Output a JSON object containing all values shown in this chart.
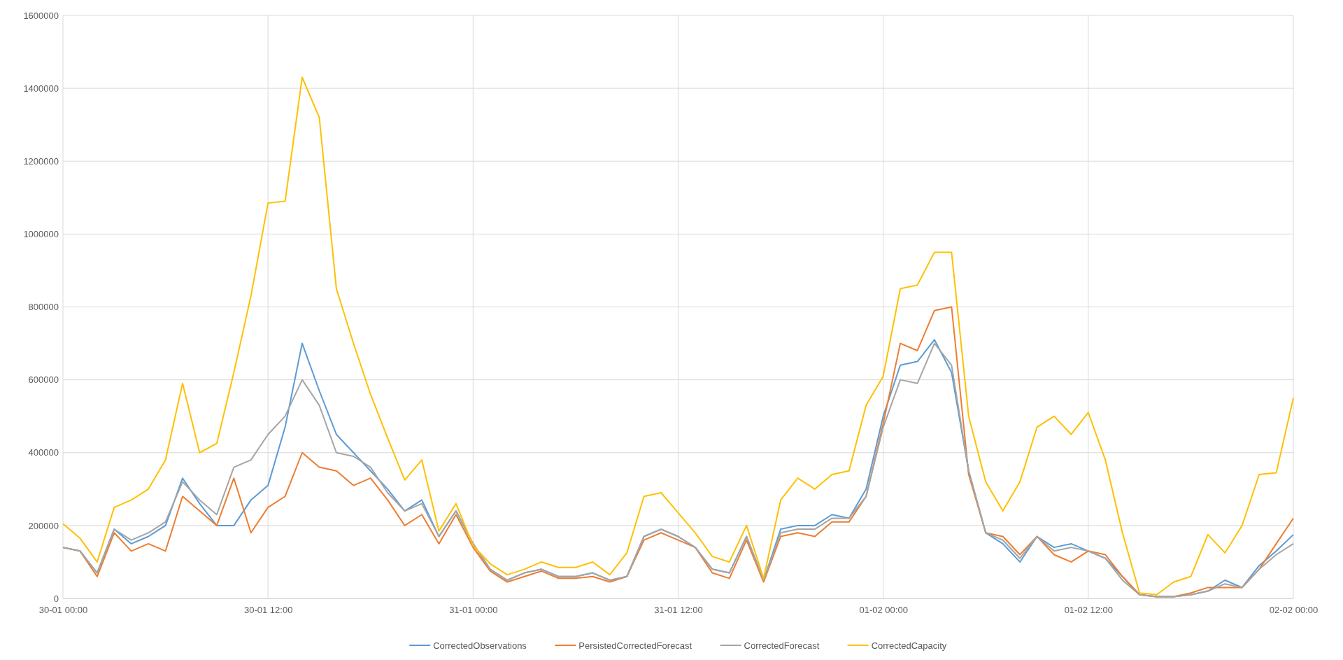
{
  "chart_data": {
    "type": "line",
    "x": [
      "--01-30T00:00",
      "--01-30T01:00",
      "--01-30T02:00",
      "--01-30T03:00",
      "--01-30T04:00",
      "--01-30T05:00",
      "--01-30T06:00",
      "--01-30T07:00",
      "--01-30T08:00",
      "--01-30T09:00",
      "--01-30T10:00",
      "--01-30T11:00",
      "--01-30T12:00",
      "--01-30T13:00",
      "--01-30T14:00",
      "--01-30T15:00",
      "--01-30T16:00",
      "--01-30T17:00",
      "--01-30T18:00",
      "--01-30T19:00",
      "--01-30T20:00",
      "--01-30T21:00",
      "--01-30T22:00",
      "--01-30T23:00",
      "--01-31T00:00",
      "--01-31T01:00",
      "--01-31T02:00",
      "--01-31T03:00",
      "--01-31T04:00",
      "--01-31T05:00",
      "--01-31T06:00",
      "--01-31T07:00",
      "--01-31T08:00",
      "--01-31T09:00",
      "--01-31T10:00",
      "--01-31T11:00",
      "--01-31T12:00",
      "--01-31T13:00",
      "--01-31T14:00",
      "--01-31T15:00",
      "--01-31T16:00",
      "--01-31T17:00",
      "--01-31T18:00",
      "--01-31T19:00",
      "--01-31T20:00",
      "--01-31T21:00",
      "--01-31T22:00",
      "--01-31T23:00",
      "--02-01T00:00",
      "--02-01T01:00",
      "--02-01T02:00",
      "--02-01T03:00",
      "--02-01T04:00",
      "--02-01T05:00",
      "--02-01T06:00",
      "--02-01T07:00",
      "--02-01T08:00",
      "--02-01T09:00",
      "--02-01T10:00",
      "--02-01T11:00",
      "--02-01T12:00",
      "--02-01T13:00",
      "--02-01T14:00",
      "--02-01T15:00",
      "--02-01T16:00",
      "--02-01T17:00",
      "--02-01T18:00",
      "--02-01T19:00",
      "--02-01T20:00",
      "--02-01T21:00",
      "--02-01T22:00",
      "--02-01T23:00",
      "--02-02T00:00"
    ],
    "xlim": [
      "--01-30T00:00",
      "--02-02T00:00"
    ],
    "xticks": [
      {
        "value": "--01-30T00:00",
        "label": "30-01 00:00"
      },
      {
        "value": "--01-30T12:00",
        "label": "30-01 12:00"
      },
      {
        "value": "--01-31T00:00",
        "label": "31-01 00:00"
      },
      {
        "value": "--01-31T12:00",
        "label": "31-01 12:00"
      },
      {
        "value": "--02-01T00:00",
        "label": "01-02 00:00"
      },
      {
        "value": "--02-01T12:00",
        "label": "01-02 12:00"
      },
      {
        "value": "--02-02T00:00",
        "label": "02-02 00:00"
      }
    ],
    "ylim": [
      0,
      1600000
    ],
    "yticks": [
      0,
      200000,
      400000,
      600000,
      800000,
      1000000,
      1200000,
      1400000,
      1600000
    ],
    "grid": true,
    "legend": "bottom",
    "marker": "none",
    "line_style": "solid",
    "series": [
      {
        "name": "CorrectedObservations",
        "color": "#5b9bd5",
        "values": [
          140000,
          130000,
          70000,
          190000,
          150000,
          170000,
          200000,
          330000,
          260000,
          200000,
          200000,
          270000,
          310000,
          470000,
          700000,
          570000,
          450000,
          400000,
          350000,
          300000,
          240000,
          270000,
          170000,
          240000,
          150000,
          80000,
          50000,
          70000,
          80000,
          60000,
          60000,
          70000,
          50000,
          60000,
          170000,
          190000,
          170000,
          140000,
          80000,
          70000,
          170000,
          50000,
          190000,
          200000,
          200000,
          230000,
          220000,
          300000,
          500000,
          640000,
          650000,
          710000,
          620000,
          350000,
          180000,
          150000,
          100000,
          170000,
          140000,
          150000,
          130000,
          110000,
          60000,
          10000,
          5000,
          5000,
          10000,
          20000,
          50000,
          30000,
          90000,
          130000,
          175000
        ]
      },
      {
        "name": "PersistedCorrectedForecast",
        "color": "#ed7d31",
        "values": [
          140000,
          130000,
          60000,
          180000,
          130000,
          150000,
          130000,
          280000,
          240000,
          200000,
          330000,
          180000,
          250000,
          280000,
          400000,
          360000,
          350000,
          310000,
          330000,
          270000,
          200000,
          230000,
          150000,
          230000,
          140000,
          75000,
          45000,
          60000,
          75000,
          55000,
          55000,
          60000,
          45000,
          60000,
          160000,
          180000,
          160000,
          140000,
          70000,
          55000,
          160000,
          45000,
          170000,
          180000,
          170000,
          210000,
          210000,
          280000,
          480000,
          700000,
          680000,
          790000,
          800000,
          340000,
          180000,
          170000,
          120000,
          170000,
          120000,
          100000,
          130000,
          120000,
          60000,
          10000,
          5000,
          5000,
          15000,
          30000,
          30000,
          30000,
          80000,
          150000,
          220000
        ]
      },
      {
        "name": "CorrectedForecast",
        "color": "#a5a5a5",
        "values": [
          140000,
          130000,
          70000,
          190000,
          160000,
          180000,
          210000,
          320000,
          270000,
          230000,
          360000,
          380000,
          450000,
          500000,
          600000,
          530000,
          400000,
          390000,
          360000,
          290000,
          240000,
          260000,
          170000,
          240000,
          150000,
          80000,
          50000,
          70000,
          80000,
          60000,
          60000,
          70000,
          50000,
          60000,
          170000,
          190000,
          170000,
          140000,
          80000,
          70000,
          170000,
          50000,
          180000,
          190000,
          190000,
          220000,
          220000,
          280000,
          470000,
          600000,
          590000,
          700000,
          640000,
          350000,
          180000,
          160000,
          110000,
          170000,
          130000,
          140000,
          130000,
          110000,
          50000,
          10000,
          5000,
          5000,
          10000,
          20000,
          40000,
          30000,
          80000,
          120000,
          150000
        ]
      },
      {
        "name": "CorrectedCapacity",
        "color": "#ffc000",
        "values": [
          205000,
          165000,
          100000,
          250000,
          270000,
          300000,
          380000,
          590000,
          400000,
          425000,
          620000,
          830000,
          1085000,
          1090000,
          1430000,
          1320000,
          850000,
          700000,
          560000,
          440000,
          325000,
          380000,
          185000,
          260000,
          145000,
          95000,
          65000,
          80000,
          100000,
          85000,
          85000,
          100000,
          65000,
          125000,
          280000,
          290000,
          235000,
          180000,
          115000,
          100000,
          200000,
          55000,
          270000,
          330000,
          300000,
          340000,
          350000,
          530000,
          610000,
          850000,
          860000,
          950000,
          950000,
          500000,
          320000,
          240000,
          320000,
          470000,
          500000,
          450000,
          510000,
          380000,
          180000,
          15000,
          10000,
          45000,
          60000,
          175000,
          125000,
          200000,
          340000,
          345000,
          550000
        ]
      }
    ]
  }
}
